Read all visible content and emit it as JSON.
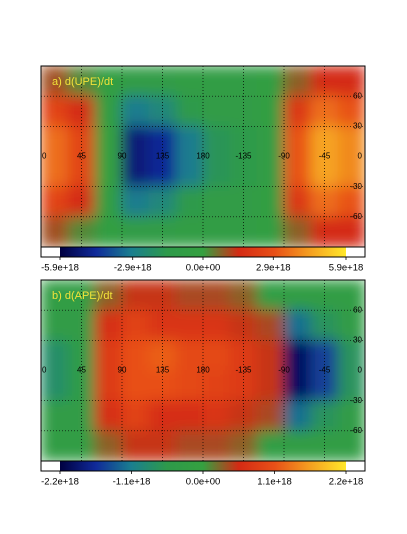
{
  "chart_data": [
    {
      "type": "heatmap",
      "title": "a) d(UPE)/dt",
      "xlim": [
        0,
        360
      ],
      "xticks": [
        0,
        45,
        90,
        135,
        180,
        {
          "value": 225,
          "label": "-135"
        },
        {
          "value": 270,
          "label": "-90"
        },
        {
          "value": 315,
          "label": "-45"
        },
        {
          "value": 360,
          "label": "0"
        }
      ],
      "ylim": [
        -90,
        90
      ],
      "yticks": [
        -60,
        -30,
        30,
        60
      ],
      "zlim": [
        -5.9e+18,
        5.9e+18
      ],
      "zticks": [
        {
          "value": -5.9e+18,
          "label": "-5.9e+18"
        },
        {
          "value": -2.9e+18,
          "label": "-2.9e+18"
        },
        {
          "value": 0,
          "label": "0.0e+00"
        },
        {
          "value": 2.9e+18,
          "label": "2.9e+18"
        },
        {
          "value": 5.9e+18,
          "label": "5.9e+18"
        }
      ],
      "colormap": [
        "#000040",
        "#102a9a",
        "#1a7f8f",
        "#2e9a4a",
        "#35a040",
        "#d42a14",
        "#e85018",
        "#f5a020",
        "#ffe82a"
      ],
      "grid": true,
      "values": [
        [
          1e+18,
          3e+17,
          -5e+17,
          -1e+18,
          -1e+18,
          -8e+17,
          -8e+17,
          -8e+17,
          -5e+17,
          8e+17,
          1.5e+18,
          1.5e+18
        ],
        [
          2.5e+18,
          1.5e+18,
          -5e+17,
          -3e+18,
          -2.5e+18,
          -1.5e+18,
          -1e+18,
          -1e+18,
          -5e+17,
          2e+18,
          3.5e+18,
          3e+18
        ],
        [
          3.5e+18,
          2.5e+18,
          0,
          -5e+18,
          -4.5e+18,
          -3e+18,
          -1.8e+18,
          -1.5e+18,
          -8e+17,
          3e+18,
          4.5e+18,
          4e+18
        ],
        [
          3.5e+18,
          2.5e+18,
          0,
          -5e+18,
          -4.5e+18,
          -3e+18,
          -1.8e+18,
          -1.5e+18,
          -8e+17,
          3e+18,
          4.5e+18,
          4e+18
        ],
        [
          2.5e+18,
          1.5e+18,
          -5e+17,
          -3e+18,
          -2.5e+18,
          -1.5e+18,
          -1e+18,
          -1e+18,
          -5e+17,
          2e+18,
          3.5e+18,
          3e+18
        ],
        [
          1e+18,
          3e+17,
          -5e+17,
          -1e+18,
          -1e+18,
          -8e+17,
          -8e+17,
          -8e+17,
          -5e+17,
          8e+17,
          1.5e+18,
          1.5e+18
        ]
      ]
    },
    {
      "type": "heatmap",
      "title": "b) d(APE)/dt",
      "xlim": [
        0,
        360
      ],
      "xticks": [
        0,
        45,
        90,
        135,
        180,
        {
          "value": 225,
          "label": "-135"
        },
        {
          "value": 270,
          "label": "-90"
        },
        {
          "value": 315,
          "label": "-45"
        },
        {
          "value": 360,
          "label": "0"
        }
      ],
      "ylim": [
        -90,
        90
      ],
      "yticks": [
        -60,
        -30,
        30,
        60
      ],
      "zlim": [
        -2.2e+18,
        2.2e+18
      ],
      "zticks": [
        {
          "value": -2.2e+18,
          "label": "-2.2e+18"
        },
        {
          "value": -1.1e+18,
          "label": "-1.1e+18"
        },
        {
          "value": 0,
          "label": "0.0e+00"
        },
        {
          "value": 1.1e+18,
          "label": "1.1e+18"
        },
        {
          "value": 2.2e+18,
          "label": "2.2e+18"
        }
      ],
      "colormap": [
        "#000040",
        "#102a9a",
        "#1a7f8f",
        "#2e9a4a",
        "#35a040",
        "#d42a14",
        "#e85018",
        "#f5a020",
        "#ffe82a"
      ],
      "grid": true,
      "values": [
        [
          -3e+17,
          -3e+17,
          3e+17,
          5e+17,
          5e+17,
          4e+17,
          4e+17,
          3e+17,
          -2e+17,
          -3e+17,
          -3e+17,
          -3e+17
        ],
        [
          -4e+17,
          -4e+17,
          6e+17,
          9e+17,
          7e+17,
          7e+17,
          7e+17,
          5e+17,
          4e+17,
          -1.2e+18,
          -7e+17,
          -4e+17
        ],
        [
          -8e+17,
          -5e+17,
          8e+17,
          1.1e+18,
          1.2e+18,
          1e+18,
          1e+18,
          8e+17,
          5e+17,
          -2e+18,
          -1.5e+18,
          -7e+17
        ],
        [
          -8e+17,
          -5e+17,
          8e+17,
          1.1e+18,
          1.1e+18,
          1e+18,
          9e+17,
          8e+17,
          5e+17,
          -2e+18,
          -1.5e+18,
          -7e+17
        ],
        [
          -4e+17,
          -4e+17,
          6e+17,
          9e+17,
          6e+17,
          6e+17,
          7e+17,
          5e+17,
          4e+17,
          -1.2e+18,
          -7e+17,
          -4e+17
        ],
        [
          -3e+17,
          -3e+17,
          3e+17,
          5e+17,
          5e+17,
          4e+17,
          4e+17,
          3e+17,
          -2e+17,
          -3e+17,
          -3e+17,
          -3e+17
        ]
      ]
    }
  ]
}
